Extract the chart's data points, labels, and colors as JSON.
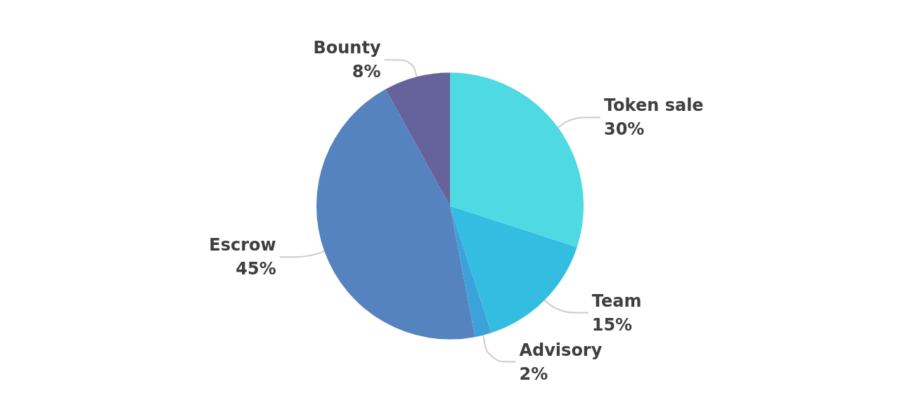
{
  "chart_data": {
    "type": "pie",
    "categories": [
      "Token sale",
      "Team",
      "Advisory",
      "Escrow",
      "Bounty"
    ],
    "values": [
      30,
      15,
      2,
      45,
      8
    ],
    "colors": [
      "#4fd9e3",
      "#33bde0",
      "#3ba3da",
      "#5483bf",
      "#66629c"
    ],
    "value_labels": [
      "30%",
      "15%",
      "2%",
      "45%",
      "8%"
    ],
    "legend": false
  }
}
